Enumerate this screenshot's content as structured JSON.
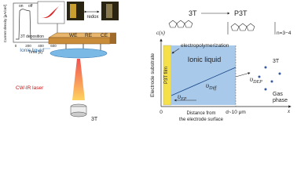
{
  "plot": {
    "y_label": "Current density [μA/cm²]",
    "x_label": "Time [s]",
    "x_ticks": [
      "0",
      "200",
      "400",
      "600"
    ],
    "on": "on",
    "off": "off",
    "caption": "3T deposition"
  },
  "photos": {
    "redox": "redox"
  },
  "cell": {
    "electrodes": [
      "WE",
      "RE",
      "CE"
    ],
    "liquid": "Ionic liquid",
    "laser": "CW-IR laser",
    "vial": "3T"
  },
  "reaction": {
    "reactant": "3T",
    "product": "P3T",
    "n": "n=3−4"
  },
  "model": {
    "y_axis": "c(x)",
    "substrate": "Electrode substrate",
    "film": "P3T film",
    "liquid": "Ionic liquid",
    "process": "electropolymerization",
    "v_diff": {
      "symbol": "υ",
      "sub": "Diff"
    },
    "v_ep": {
      "symbol": "υ",
      "sub": "EP"
    },
    "v_dep": {
      "symbol": "υ",
      "sub": "DEP"
    },
    "gas_species": "3T",
    "gas": [
      "Gas",
      "phase"
    ],
    "x_zero": "0",
    "x_d": "d~10 μm",
    "x_axis": "x",
    "x_label": [
      "Distance from",
      "the electrode surface"
    ]
  }
}
